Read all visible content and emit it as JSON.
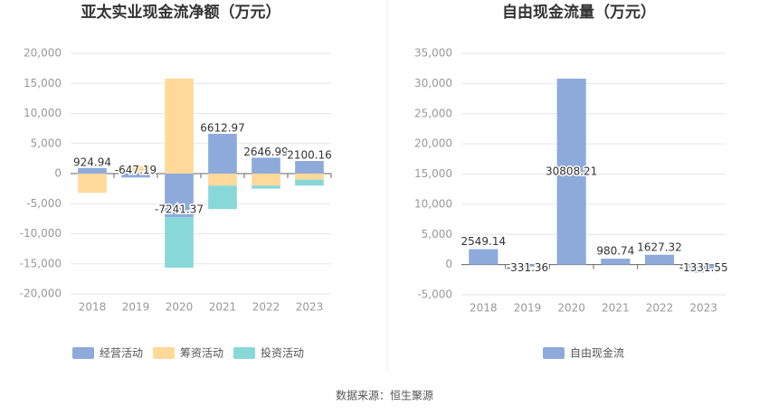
{
  "chart_data": [
    {
      "type": "stacked_bar",
      "title": "亚太实业现金流净额（万元）",
      "categories": [
        "2018",
        "2019",
        "2020",
        "2021",
        "2022",
        "2023"
      ],
      "series": [
        {
          "name": "经营活动",
          "color": "#8eaadb",
          "values": [
            924.94,
            -647.19,
            -7241.37,
            6612.97,
            2646.99,
            2100.16
          ]
        },
        {
          "name": "筹资活动",
          "color": "#ffd99a",
          "values": [
            -3200,
            1300,
            15800,
            -2000,
            -2000,
            -1000
          ]
        },
        {
          "name": "投资活动",
          "color": "#88d8d8",
          "values": [
            0,
            0,
            -8400,
            -3900,
            -500,
            -1000
          ]
        }
      ],
      "ylim": [
        -20000,
        20000
      ],
      "yticks": [
        {
          "value": -20000,
          "label": "-20,000"
        },
        {
          "value": -15000,
          "label": "-15,000"
        },
        {
          "value": -10000,
          "label": "-10,000"
        },
        {
          "value": -5000,
          "label": "-5,000"
        },
        0,
        {
          "value": 5000,
          "label": "5,000"
        },
        {
          "value": 10000,
          "label": "10,000"
        },
        {
          "value": 15000,
          "label": "15,000"
        },
        {
          "value": 20000,
          "label": "20,000"
        }
      ],
      "grid": true
    },
    {
      "type": "bar",
      "title": "自由现金流量（万元）",
      "categories": [
        "2018",
        "2019",
        "2020",
        "2021",
        "2022",
        "2023"
      ],
      "series": [
        {
          "name": "自由现金流",
          "color": "#8eaadb",
          "values": [
            2549.14,
            -331.36,
            30808.21,
            980.74,
            1627.32,
            -1331.55
          ]
        }
      ],
      "ylim": [
        -5000,
        35000
      ],
      "yticks": [
        {
          "value": -5000,
          "label": "-5,000"
        },
        0,
        {
          "value": 5000,
          "label": "5,000"
        },
        {
          "value": 10000,
          "label": "10,000"
        },
        {
          "value": 15000,
          "label": "15,000"
        },
        {
          "value": 20000,
          "label": "20,000"
        },
        {
          "value": 25000,
          "label": "25,000"
        },
        {
          "value": 30000,
          "label": "30,000"
        },
        {
          "value": 35000,
          "label": "35,000"
        }
      ],
      "grid": true
    }
  ],
  "source": "数据来源：恒生聚源"
}
